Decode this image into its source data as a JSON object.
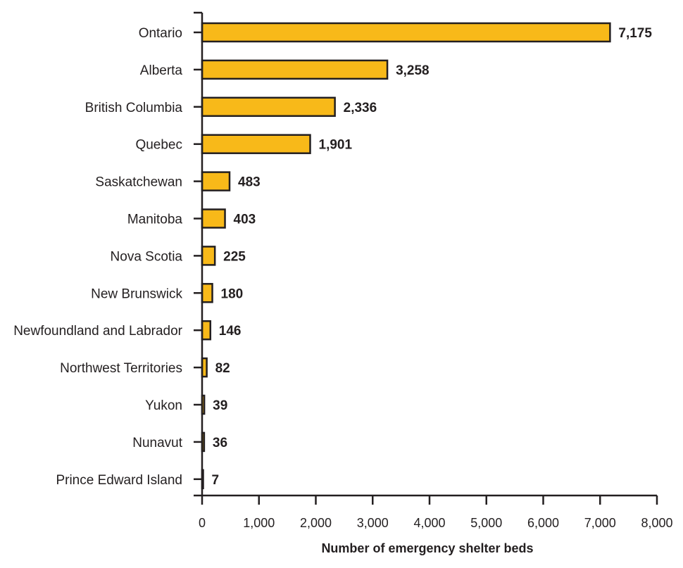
{
  "chart_data": {
    "type": "bar",
    "orientation": "horizontal",
    "categories": [
      "Ontario",
      "Alberta",
      "British Columbia",
      "Quebec",
      "Saskatchewan",
      "Manitoba",
      "Nova Scotia",
      "New Brunswick",
      "Newfoundland and Labrador",
      "Northwest Territories",
      "Yukon",
      "Nunavut",
      "Prince Edward Island"
    ],
    "values": [
      7175,
      3258,
      2336,
      1901,
      483,
      403,
      225,
      180,
      146,
      82,
      39,
      36,
      7
    ],
    "value_labels": [
      "7,175",
      "3,258",
      "2,336",
      "1,901",
      "483",
      "403",
      "225",
      "180",
      "146",
      "82",
      "39",
      "36",
      "7"
    ],
    "xlabel": "Number of emergency shelter beds",
    "ylabel": "",
    "xlim": [
      0,
      8000
    ],
    "x_ticks": [
      0,
      1000,
      2000,
      3000,
      4000,
      5000,
      6000,
      7000,
      8000
    ],
    "x_tick_labels": [
      "0",
      "1,000",
      "2,000",
      "3,000",
      "4,000",
      "5,000",
      "6,000",
      "7,000",
      "8,000"
    ],
    "grid": false,
    "colors": {
      "bar_fill": "#f8b919",
      "bar_stroke": "#231f20",
      "axis": "#231f20"
    }
  }
}
